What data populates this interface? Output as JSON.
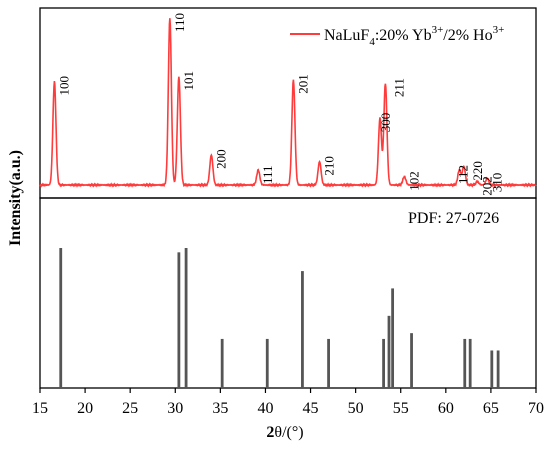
{
  "chart_data": [
    {
      "type": "line",
      "panel": "top",
      "legend": {
        "label_main": "NaLuF",
        "sub": "4",
        "label_mid": ":20% Yb",
        "sup1": "3+",
        "label_tail": "/2% Ho",
        "sup2": "3+",
        "placement": "top-right"
      },
      "color": "#ff3b3b",
      "peaks": [
        {
          "x": 16.6,
          "y": 0.62,
          "label": "100"
        },
        {
          "x": 29.4,
          "y": 1.0,
          "label": "110"
        },
        {
          "x": 30.4,
          "y": 0.65,
          "label": "101"
        },
        {
          "x": 34.0,
          "y": 0.18,
          "label": "200"
        },
        {
          "x": 39.2,
          "y": 0.09,
          "label": "111"
        },
        {
          "x": 43.1,
          "y": 0.63,
          "label": "201"
        },
        {
          "x": 46.0,
          "y": 0.14,
          "label": "210"
        },
        {
          "x": 52.7,
          "y": 0.4,
          "label": "300"
        },
        {
          "x": 53.3,
          "y": 0.61,
          "label": "211"
        },
        {
          "x": 55.4,
          "y": 0.05,
          "label": "102"
        },
        {
          "x": 61.5,
          "y": 0.09,
          "label": "112"
        },
        {
          "x": 62.0,
          "y": 0.11,
          "label": "220"
        },
        {
          "x": 63.5,
          "y": 0.02,
          "label": "202"
        },
        {
          "x": 64.6,
          "y": 0.04,
          "label": "310"
        }
      ]
    },
    {
      "type": "bar",
      "panel": "bottom",
      "annotation": "PDF:  27-0726",
      "color": "#555555",
      "sticks": [
        {
          "x": 17.3,
          "y": 0.97
        },
        {
          "x": 30.4,
          "y": 0.94
        },
        {
          "x": 31.2,
          "y": 0.97
        },
        {
          "x": 35.2,
          "y": 0.34
        },
        {
          "x": 40.2,
          "y": 0.34
        },
        {
          "x": 44.1,
          "y": 0.81
        },
        {
          "x": 47.0,
          "y": 0.34
        },
        {
          "x": 53.1,
          "y": 0.34
        },
        {
          "x": 53.7,
          "y": 0.5
        },
        {
          "x": 54.1,
          "y": 0.69
        },
        {
          "x": 56.2,
          "y": 0.38
        },
        {
          "x": 62.1,
          "y": 0.34
        },
        {
          "x": 62.7,
          "y": 0.34
        },
        {
          "x": 65.1,
          "y": 0.26
        },
        {
          "x": 65.8,
          "y": 0.26
        }
      ]
    }
  ],
  "axes": {
    "xlabel_main": "2",
    "xlabel_theta": "θ",
    "xlabel_unit": "/(°)",
    "ylabel": "Intensity(a.u.)",
    "xlim": [
      15,
      70
    ],
    "xticks": [
      "15",
      "20",
      "25",
      "30",
      "35",
      "40",
      "45",
      "50",
      "55",
      "60",
      "65",
      "70"
    ]
  }
}
